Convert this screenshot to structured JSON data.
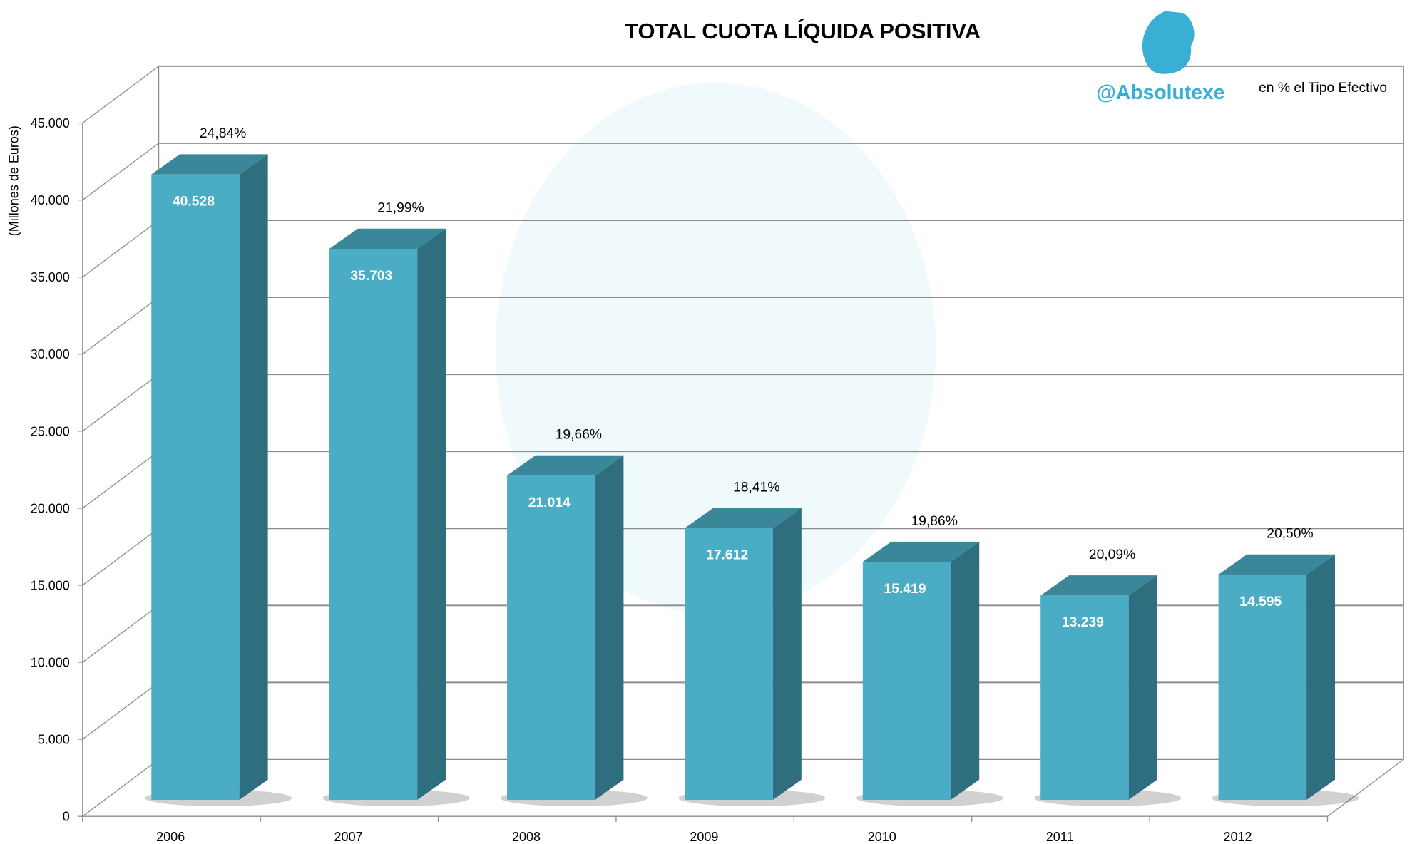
{
  "chart_data": {
    "type": "bar",
    "title": "TOTAL CUOTA LÍQUIDA POSITIVA",
    "ylabel": "(Millones de Euros)",
    "xlabel": "",
    "annotation": "en % el Tipo Efectivo",
    "watermark": "@Absolutexe",
    "categories": [
      "2006",
      "2007",
      "2008",
      "2009",
      "2010",
      "2011",
      "2012"
    ],
    "values": [
      40528,
      35703,
      21014,
      17612,
      15419,
      13239,
      14595
    ],
    "value_labels": [
      "40.528",
      "35.703",
      "21.014",
      "17.612",
      "15.419",
      "13.239",
      "14.595"
    ],
    "pct_labels": [
      "24,84%",
      "21,99%",
      "19,66%",
      "18,41%",
      "19,86%",
      "20,09%",
      "20,50%"
    ],
    "ylim": [
      0,
      45000
    ],
    "yticks": [
      "0",
      "5.000",
      "10.000",
      "15.000",
      "20.000",
      "25.000",
      "30.000",
      "35.000",
      "40.000",
      "45.000"
    ],
    "grid": true,
    "style": "3d-column",
    "colors": {
      "front": "#4BACC6",
      "side": "#2E6E7F",
      "top": "#3A8799",
      "watermark": "#3AAFD6"
    }
  }
}
